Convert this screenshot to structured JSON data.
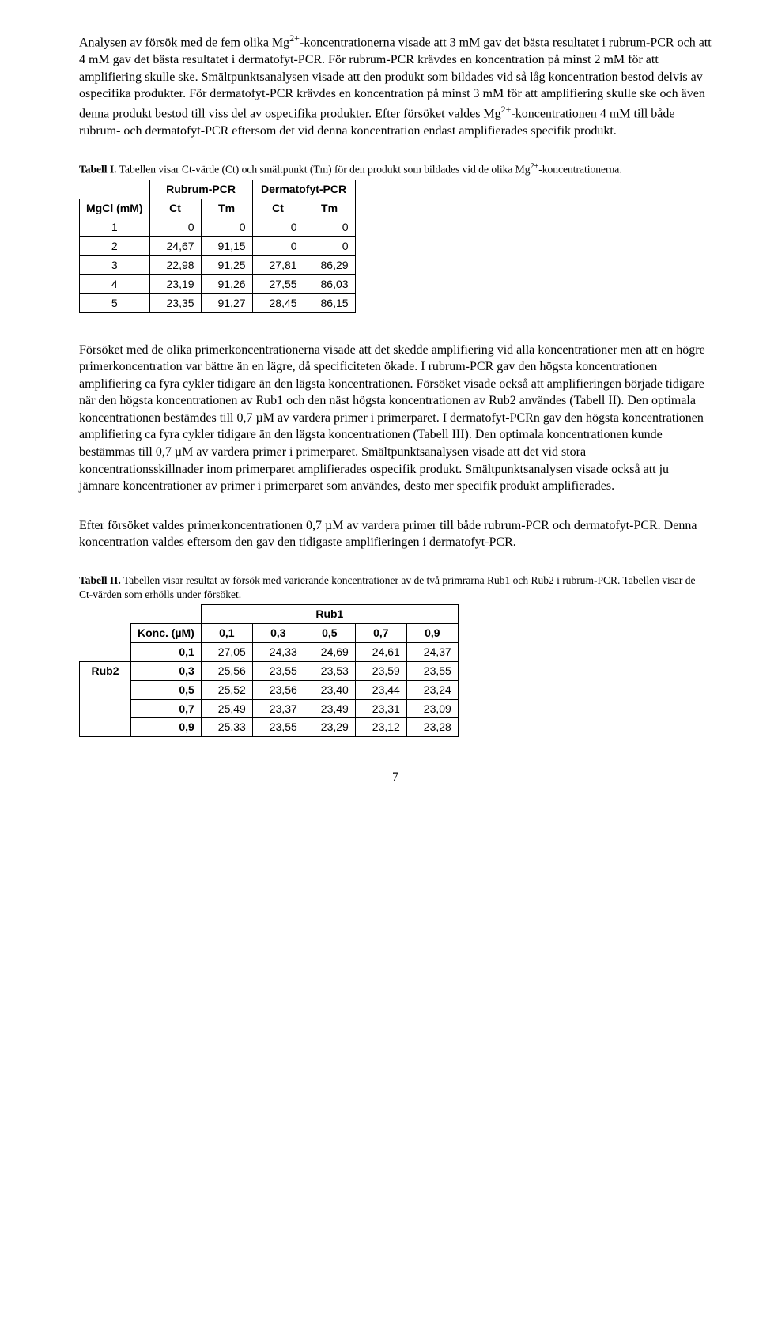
{
  "paragraphs": {
    "p1_pre": "Analysen av försök med de fem olika Mg",
    "p1_sup": "2+",
    "p1_post": "-koncentrationerna visade att 3 mM gav det bästa resultatet i rubrum-PCR och att 4 mM gav det bästa resultatet i dermatofyt-PCR. För rubrum-PCR krävdes en koncentration på minst 2 mM för att amplifiering skulle ske. Smältpunktsanalysen visade att den produkt som bildades vid så låg koncentration bestod delvis av ospecifika produkter. För dermatofyt-PCR krävdes en koncentration på minst 3 mM för att amplifiering skulle ske och även denna produkt bestod till viss del av ospecifika produkter. Efter försöket valdes Mg",
    "p1_sup2": "2+",
    "p1_tail": "-koncentrationen 4 mM till både rubrum- och dermatofyt-PCR eftersom det vid denna koncentration endast amplifierades specifik produkt.",
    "p2": "Försöket med de olika primerkoncentrationerna visade att det skedde amplifiering vid alla koncentrationer men att en högre primerkoncentration var bättre än en lägre, då specificiteten ökade. I rubrum-PCR gav den högsta koncentrationen amplifiering ca fyra cykler tidigare än den lägsta koncentrationen. Försöket visade också att amplifieringen började tidigare när den högsta koncentrationen av Rub1 och den näst högsta koncentrationen av Rub2 användes (Tabell II). Den optimala koncentrationen bestämdes till 0,7 µM av vardera primer i primerparet. I dermatofyt-PCRn gav den högsta koncentrationen amplifiering ca fyra cykler tidigare än den lägsta koncentrationen (Tabell III). Den optimala koncentrationen kunde bestämmas till 0,7 µM av vardera primer i primerparet. Smältpunktsanalysen visade att det vid stora koncentrationsskillnader inom primerparet amplifierades ospecifik produkt. Smältpunktsanalysen visade också att ju jämnare koncentrationer av primer i primerparet som användes, desto mer specifik produkt amplifierades.",
    "p3": "Efter försöket valdes primerkoncentrationen 0,7 µM av vardera primer till både rubrum-PCR och dermatofyt-PCR. Denna koncentration valdes eftersom den gav den tidigaste amplifieringen i dermatofyt-PCR."
  },
  "table1": {
    "caption_bold": "Tabell I.",
    "caption_pre": " Tabellen visar Ct-värde (Ct) och smältpunkt (Tm) för den produkt som bildades vid de olika Mg",
    "caption_sup": "2+",
    "caption_post": "-koncentrationerna.",
    "col_group_1": "Rubrum-PCR",
    "col_group_2": "Dermatofyt-PCR",
    "rowhead": "MgCl (mM)",
    "subcols": [
      "Ct",
      "Tm",
      "Ct",
      "Tm"
    ],
    "rows": [
      [
        "1",
        "0",
        "0",
        "0",
        "0"
      ],
      [
        "2",
        "24,67",
        "91,15",
        "0",
        "0"
      ],
      [
        "3",
        "22,98",
        "91,25",
        "27,81",
        "86,29"
      ],
      [
        "4",
        "23,19",
        "91,26",
        "27,55",
        "86,03"
      ],
      [
        "5",
        "23,35",
        "91,27",
        "28,45",
        "86,15"
      ]
    ]
  },
  "table2": {
    "caption_bold": "Tabell II.",
    "caption_rest": " Tabellen visar resultat av försök med varierande koncentrationer av de två primrarna Rub1 och Rub2 i rubrum-PCR. Tabellen visar de Ct-värden som erhölls under försöket.",
    "top_label": "Rub1",
    "left_label": "Rub2",
    "konc_label": "Konc. (µM)",
    "col_heads": [
      "0,1",
      "0,3",
      "0,5",
      "0,7",
      "0,9"
    ],
    "row_heads": [
      "0,1",
      "0,3",
      "0,5",
      "0,7",
      "0,9"
    ],
    "cells": [
      [
        "27,05",
        "24,33",
        "24,69",
        "24,61",
        "24,37"
      ],
      [
        "25,56",
        "23,55",
        "23,53",
        "23,59",
        "23,55"
      ],
      [
        "25,52",
        "23,56",
        "23,40",
        "23,44",
        "23,24"
      ],
      [
        "25,49",
        "23,37",
        "23,49",
        "23,31",
        "23,09"
      ],
      [
        "25,33",
        "23,55",
        "23,29",
        "23,12",
        "23,28"
      ]
    ]
  },
  "page_number": "7"
}
